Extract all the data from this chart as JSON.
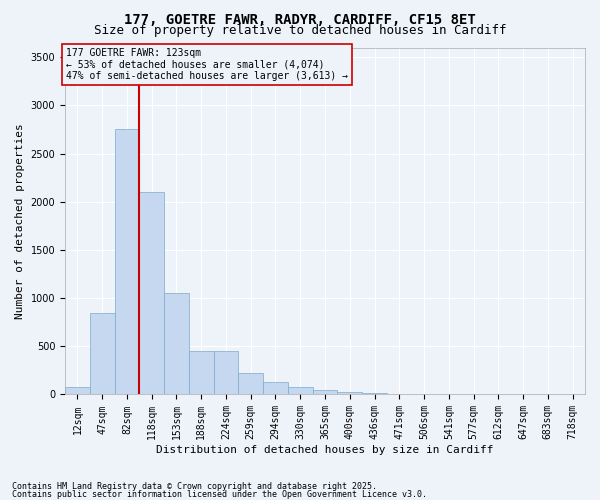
{
  "title1": "177, GOETRE FAWR, RADYR, CARDIFF, CF15 8ET",
  "title2": "Size of property relative to detached houses in Cardiff",
  "xlabel": "Distribution of detached houses by size in Cardiff",
  "ylabel": "Number of detached properties",
  "categories": [
    "12sqm",
    "47sqm",
    "82sqm",
    "118sqm",
    "153sqm",
    "188sqm",
    "224sqm",
    "259sqm",
    "294sqm",
    "330sqm",
    "365sqm",
    "400sqm",
    "436sqm",
    "471sqm",
    "506sqm",
    "541sqm",
    "577sqm",
    "612sqm",
    "647sqm",
    "683sqm",
    "718sqm"
  ],
  "values": [
    80,
    850,
    2750,
    2100,
    1050,
    450,
    450,
    220,
    130,
    80,
    50,
    30,
    15,
    5,
    2,
    1,
    0,
    0,
    0,
    0,
    0
  ],
  "bar_color": "#c5d8f0",
  "bar_edge_color": "#7aabcc",
  "vline_color": "#cc0000",
  "vline_pos": 2.5,
  "annotation_box_text": "177 GOETRE FAWR: 123sqm\n← 53% of detached houses are smaller (4,074)\n47% of semi-detached houses are larger (3,613) →",
  "annotation_box_color": "#cc0000",
  "ylim": [
    0,
    3600
  ],
  "yticks": [
    0,
    500,
    1000,
    1500,
    2000,
    2500,
    3000,
    3500
  ],
  "background_color": "#eef2f9",
  "footer1": "Contains HM Land Registry data © Crown copyright and database right 2025.",
  "footer2": "Contains public sector information licensed under the Open Government Licence v3.0.",
  "grid_color": "#ffffff",
  "title_fontsize": 10,
  "subtitle_fontsize": 9,
  "xlabel_fontsize": 8,
  "ylabel_fontsize": 8,
  "tick_fontsize": 7,
  "ann_fontsize": 7,
  "footer_fontsize": 6
}
